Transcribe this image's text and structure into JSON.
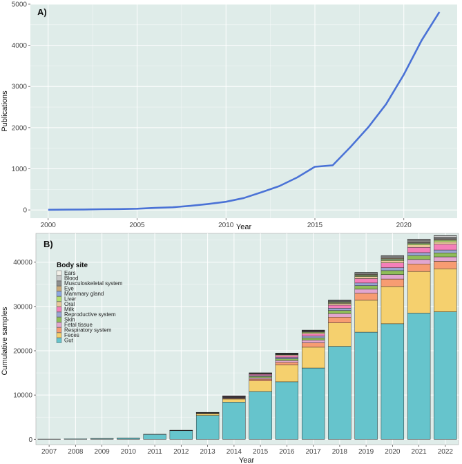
{
  "chart_data": [
    {
      "panel": "A)",
      "type": "line",
      "xlabel": "Year",
      "ylabel": "Publications",
      "xlim": [
        1999,
        2023
      ],
      "ylim": [
        -200,
        5000
      ],
      "x_ticks": [
        2000,
        2005,
        2010,
        2015,
        2020
      ],
      "y_ticks": [
        0,
        1000,
        2000,
        3000,
        4000,
        5000
      ],
      "grid": true,
      "series": [
        {
          "name": "Publications",
          "color": "#4a72d6",
          "x": [
            2000,
            2001,
            2002,
            2003,
            2004,
            2005,
            2006,
            2007,
            2008,
            2009,
            2010,
            2011,
            2012,
            2013,
            2014,
            2015,
            2016,
            2017,
            2018,
            2019,
            2020,
            2021,
            2022
          ],
          "y": [
            5,
            8,
            12,
            18,
            22,
            30,
            50,
            65,
            100,
            145,
            200,
            290,
            430,
            580,
            790,
            1050,
            1085,
            1530,
            2010,
            2570,
            3290,
            4120,
            4810
          ]
        }
      ]
    },
    {
      "panel": "B)",
      "type": "bar",
      "stacked": true,
      "xlabel": "Year",
      "ylabel": "Cumulative samples",
      "ylim": [
        -1200,
        46500
      ],
      "y_ticks": [
        0,
        10000,
        20000,
        30000,
        40000
      ],
      "grid": true,
      "categories": [
        "2007",
        "2008",
        "2009",
        "2010",
        "2011",
        "2012",
        "2013",
        "2014",
        "2015",
        "2016",
        "2017",
        "2018",
        "2019",
        "2020",
        "2021",
        "2022"
      ],
      "legend_title": "Body site",
      "legend_position": "top-left",
      "series": [
        {
          "name": "Gut",
          "color": "#66c4cc",
          "values": [
            50,
            120,
            200,
            320,
            1100,
            1950,
            5400,
            8400,
            10800,
            13000,
            16100,
            21000,
            24200,
            26100,
            28500,
            28800
          ]
        },
        {
          "name": "Feces",
          "color": "#f5d06e",
          "values": [
            0,
            0,
            10,
            15,
            40,
            50,
            400,
            700,
            2400,
            3800,
            4700,
            5300,
            7200,
            8400,
            9400,
            9700
          ]
        },
        {
          "name": "Respiratory system",
          "color": "#f79c72",
          "values": [
            0,
            0,
            0,
            0,
            10,
            20,
            80,
            150,
            400,
            600,
            1000,
            1300,
            1600,
            1700,
            1700,
            1700
          ]
        },
        {
          "name": "Fetal tissue",
          "color": "#e2a6cf",
          "values": [
            0,
            0,
            0,
            0,
            0,
            10,
            40,
            100,
            300,
            400,
            600,
            800,
            900,
            1000,
            1000,
            1000
          ]
        },
        {
          "name": "Skin",
          "color": "#8fbd58",
          "values": [
            0,
            0,
            0,
            0,
            0,
            10,
            40,
            100,
            300,
            400,
            500,
            700,
            800,
            900,
            900,
            900
          ]
        },
        {
          "name": "Reproductive system",
          "color": "#9aa5d3",
          "values": [
            0,
            0,
            0,
            0,
            0,
            10,
            30,
            100,
            200,
            300,
            400,
            500,
            600,
            650,
            650,
            650
          ]
        },
        {
          "name": "Milk",
          "color": "#f57fb9",
          "values": [
            0,
            0,
            0,
            0,
            0,
            10,
            40,
            100,
            300,
            400,
            500,
            700,
            1000,
            1100,
            1200,
            1300
          ]
        },
        {
          "name": "Oral",
          "color": "#e9c89b",
          "values": [
            0,
            0,
            0,
            0,
            0,
            0,
            20,
            50,
            100,
            200,
            300,
            400,
            450,
            500,
            550,
            550
          ]
        },
        {
          "name": "Liver",
          "color": "#b5de71",
          "values": [
            0,
            0,
            0,
            0,
            0,
            0,
            10,
            30,
            50,
            100,
            150,
            200,
            250,
            300,
            350,
            350
          ]
        },
        {
          "name": "Mammary gland",
          "color": "#8ca7e0",
          "values": [
            0,
            0,
            0,
            0,
            0,
            0,
            10,
            20,
            40,
            60,
            80,
            100,
            120,
            140,
            150,
            150
          ]
        },
        {
          "name": "Eye",
          "color": "#c9a979",
          "values": [
            0,
            0,
            0,
            0,
            0,
            0,
            10,
            20,
            40,
            60,
            80,
            100,
            120,
            150,
            160,
            170
          ]
        },
        {
          "name": "Musculoskeletal system",
          "color": "#8e8e8e",
          "values": [
            0,
            0,
            0,
            0,
            0,
            0,
            10,
            30,
            50,
            100,
            150,
            200,
            250,
            300,
            350,
            400
          ]
        },
        {
          "name": "Blood",
          "color": "#c8c8c8",
          "values": [
            0,
            0,
            0,
            0,
            0,
            0,
            10,
            20,
            30,
            50,
            80,
            100,
            150,
            200,
            250,
            300
          ]
        },
        {
          "name": "Ears",
          "color": "#f2efe8",
          "values": [
            0,
            0,
            0,
            0,
            0,
            0,
            0,
            10,
            10,
            20,
            30,
            40,
            50,
            50,
            60,
            60
          ]
        }
      ]
    }
  ]
}
